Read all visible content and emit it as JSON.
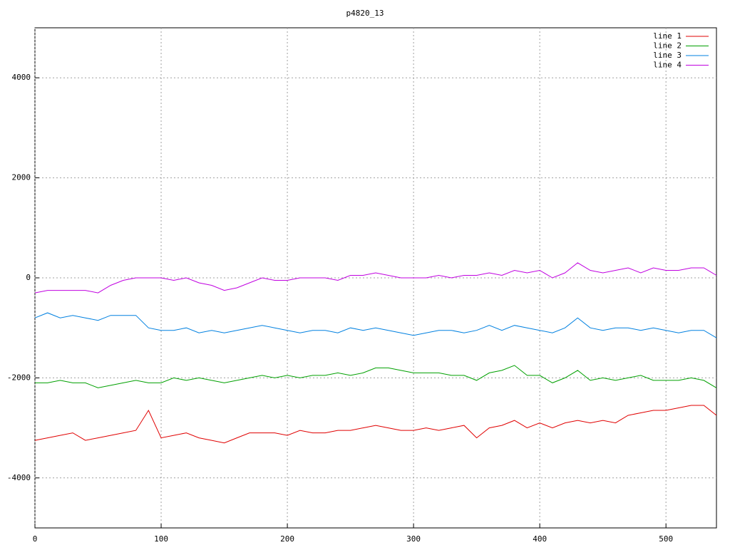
{
  "chart_data": {
    "type": "line",
    "title": "p4820_13",
    "x": [
      0,
      10,
      20,
      30,
      40,
      50,
      60,
      70,
      80,
      90,
      100,
      110,
      120,
      130,
      140,
      150,
      160,
      170,
      180,
      190,
      200,
      210,
      220,
      230,
      240,
      250,
      260,
      270,
      280,
      290,
      300,
      310,
      320,
      330,
      340,
      350,
      360,
      370,
      380,
      390,
      400,
      410,
      420,
      430,
      440,
      450,
      460,
      470,
      480,
      490,
      500,
      510,
      520,
      530,
      540
    ],
    "series": [
      {
        "name": "line 1",
        "color": "#e00000",
        "values": [
          -3250,
          -3200,
          -3150,
          -3100,
          -3250,
          -3200,
          -3150,
          -3100,
          -3050,
          -2650,
          -3200,
          -3150,
          -3100,
          -3200,
          -3250,
          -3300,
          -3200,
          -3100,
          -3100,
          -3100,
          -3150,
          -3050,
          -3100,
          -3100,
          -3050,
          -3050,
          -3000,
          -2950,
          -3000,
          -3050,
          -3050,
          -3000,
          -3050,
          -3000,
          -2950,
          -3200,
          -3000,
          -2950,
          -2850,
          -3000,
          -2900,
          -3000,
          -2900,
          -2850,
          -2900,
          -2850,
          -2900,
          -2750,
          -2700,
          -2650,
          -2650,
          -2600,
          -2550,
          -2550,
          -2750
        ]
      },
      {
        "name": "line 2",
        "color": "#00a000",
        "values": [
          -2100,
          -2100,
          -2050,
          -2100,
          -2100,
          -2200,
          -2150,
          -2100,
          -2050,
          -2100,
          -2100,
          -2000,
          -2050,
          -2000,
          -2050,
          -2100,
          -2050,
          -2000,
          -1950,
          -2000,
          -1950,
          -2000,
          -1950,
          -1950,
          -1900,
          -1950,
          -1900,
          -1800,
          -1800,
          -1850,
          -1900,
          -1900,
          -1900,
          -1950,
          -1950,
          -2050,
          -1900,
          -1850,
          -1750,
          -1950,
          -1950,
          -2100,
          -2000,
          -1850,
          -2050,
          -2000,
          -2050,
          -2000,
          -1950,
          -2050,
          -2050,
          -2050,
          -2000,
          -2050,
          -2200
        ]
      },
      {
        "name": "line 3",
        "color": "#0080e0",
        "values": [
          -800,
          -700,
          -800,
          -750,
          -800,
          -850,
          -750,
          -750,
          -750,
          -1000,
          -1050,
          -1050,
          -1000,
          -1100,
          -1050,
          -1100,
          -1050,
          -1000,
          -950,
          -1000,
          -1050,
          -1100,
          -1050,
          -1050,
          -1100,
          -1000,
          -1050,
          -1000,
          -1050,
          -1100,
          -1150,
          -1100,
          -1050,
          -1050,
          -1100,
          -1050,
          -950,
          -1050,
          -950,
          -1000,
          -1050,
          -1100,
          -1000,
          -800,
          -1000,
          -1050,
          -1000,
          -1000,
          -1050,
          -1000,
          -1050,
          -1100,
          -1050,
          -1050,
          -1200
        ]
      },
      {
        "name": "line 4",
        "color": "#c000e0",
        "values": [
          -300,
          -250,
          -250,
          -250,
          -250,
          -300,
          -150,
          -50,
          0,
          0,
          0,
          -50,
          0,
          -100,
          -150,
          -250,
          -200,
          -100,
          0,
          -50,
          -50,
          0,
          0,
          0,
          -50,
          50,
          50,
          100,
          50,
          0,
          0,
          0,
          50,
          0,
          50,
          50,
          100,
          50,
          150,
          100,
          150,
          0,
          100,
          300,
          150,
          100,
          150,
          200,
          100,
          200,
          150,
          150,
          200,
          200,
          50
        ]
      }
    ],
    "xlim": [
      0,
      540
    ],
    "ylim": [
      -5000,
      5000
    ],
    "xticks": [
      0,
      100,
      200,
      300,
      400,
      500
    ],
    "yticks": [
      -4000,
      -2000,
      0,
      2000,
      4000
    ],
    "grid": true,
    "legend": "top-right"
  }
}
